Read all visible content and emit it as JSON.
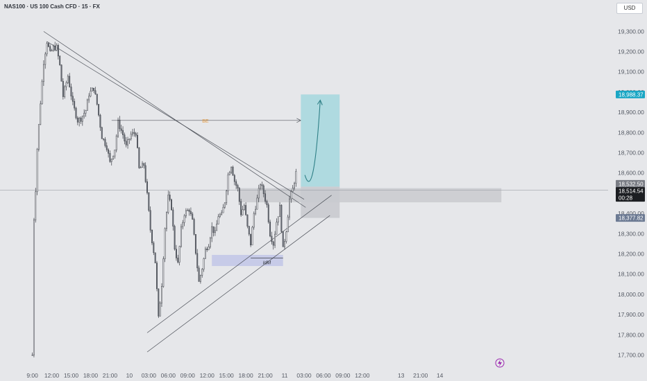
{
  "header": {
    "symbol_title": "NAS100 · US 100 Cash CFD · 15 · FX"
  },
  "currency_button": {
    "label": "USD"
  },
  "colors": {
    "background": "#e6e7ea",
    "candle_up": "#f4f4f6",
    "candle_down": "#6b7079",
    "wick": "#3a3d44",
    "target_zone": "#a9d8df",
    "zone_gray": "#c9cacf",
    "idm_zone": "#c3c8e8",
    "price_badge_blue": "#1aa6c4",
    "price_badge_slate": "#6c7a93",
    "price_badge_gray": "#7a7d85",
    "price_badge_dark": "#1c1e22",
    "arrow": "#2e7f86",
    "bos_label": "#e69a3d",
    "replay_icon": "#9c27b0"
  },
  "chart_data": {
    "type": "candlestick",
    "title": "NAS100 · US 100 Cash CFD · 15 · FX",
    "currency": "USD",
    "ylim": [
      17640,
      19380
    ],
    "yticks": [
      "19,300.00",
      "19,200.00",
      "19,100.00",
      "19,000.00",
      "18,900.00",
      "18,800.00",
      "18,700.00",
      "18,600.00",
      "18,500.00",
      "18,400.00",
      "18,300.00",
      "18,200.00",
      "18,100.00",
      "18,000.00",
      "17,900.00",
      "17,800.00",
      "17,700.00"
    ],
    "x_range": [
      -20,
      356
    ],
    "x_ticks": [
      {
        "t": 0,
        "label": "9:00"
      },
      {
        "t": 12,
        "label": "12:00"
      },
      {
        "t": 24,
        "label": "15:00"
      },
      {
        "t": 36,
        "label": "18:00"
      },
      {
        "t": 48,
        "label": "21:00"
      },
      {
        "t": 60,
        "label": "10"
      },
      {
        "t": 72,
        "label": "03:00"
      },
      {
        "t": 84,
        "label": "06:00"
      },
      {
        "t": 96,
        "label": "09:00"
      },
      {
        "t": 108,
        "label": "12:00"
      },
      {
        "t": 120,
        "label": "15:00"
      },
      {
        "t": 132,
        "label": "18:00"
      },
      {
        "t": 144,
        "label": "21:00"
      },
      {
        "t": 156,
        "label": "11"
      },
      {
        "t": 168,
        "label": "03:00"
      },
      {
        "t": 180,
        "label": "06:00"
      },
      {
        "t": 192,
        "label": "09:00"
      },
      {
        "t": 204,
        "label": "12:00"
      },
      {
        "t": 228,
        "label": "13"
      },
      {
        "t": 240,
        "label": "21:00"
      },
      {
        "t": 252,
        "label": "14"
      }
    ],
    "price_waypoints": [
      [
        0,
        17700
      ],
      [
        0.6,
        18340
      ],
      [
        1.5,
        18420
      ],
      [
        3,
        18720
      ],
      [
        5,
        18950
      ],
      [
        7,
        19150
      ],
      [
        9,
        19250
      ],
      [
        11,
        19190
      ],
      [
        13,
        19220
      ],
      [
        15,
        19220
      ],
      [
        17,
        19130
      ],
      [
        19,
        18980
      ],
      [
        22,
        19080
      ],
      [
        25,
        18940
      ],
      [
        28,
        18860
      ],
      [
        30,
        18870
      ],
      [
        33,
        18910
      ],
      [
        35,
        18990
      ],
      [
        38,
        19020
      ],
      [
        40,
        18940
      ],
      [
        43,
        18780
      ],
      [
        46,
        18730
      ],
      [
        48,
        18650
      ],
      [
        51,
        18720
      ],
      [
        53,
        18850
      ],
      [
        56,
        18790
      ],
      [
        58,
        18730
      ],
      [
        61,
        18790
      ],
      [
        64,
        18800
      ],
      [
        66,
        18620
      ],
      [
        69,
        18640
      ],
      [
        71,
        18490
      ],
      [
        73,
        18320
      ],
      [
        76,
        18160
      ],
      [
        78,
        17880
      ],
      [
        80,
        18050
      ],
      [
        82,
        18330
      ],
      [
        84,
        18480
      ],
      [
        86,
        18430
      ],
      [
        88,
        18230
      ],
      [
        90,
        18150
      ],
      [
        92,
        18320
      ],
      [
        94,
        18400
      ],
      [
        97,
        18420
      ],
      [
        99,
        18360
      ],
      [
        101,
        18210
      ],
      [
        103,
        18060
      ],
      [
        105,
        18130
      ],
      [
        107,
        18220
      ],
      [
        109,
        18250
      ],
      [
        111,
        18330
      ],
      [
        113,
        18300
      ],
      [
        115,
        18390
      ],
      [
        117,
        18390
      ],
      [
        119,
        18460
      ],
      [
        121,
        18590
      ],
      [
        123,
        18640
      ],
      [
        125,
        18560
      ],
      [
        127,
        18520
      ],
      [
        129,
        18400
      ],
      [
        131,
        18440
      ],
      [
        133,
        18330
      ],
      [
        135,
        18250
      ],
      [
        137,
        18400
      ],
      [
        139,
        18470
      ],
      [
        141,
        18550
      ],
      [
        143,
        18500
      ],
      [
        145,
        18440
      ],
      [
        147,
        18300
      ],
      [
        149,
        18250
      ],
      [
        151,
        18360
      ],
      [
        153,
        18430
      ],
      [
        155,
        18220
      ],
      [
        157,
        18320
      ],
      [
        159,
        18470
      ],
      [
        161,
        18520
      ],
      [
        163,
        18600
      ]
    ],
    "levels": {
      "target_top": 18988.37,
      "current_price": 18514.54,
      "entry": 18532.5,
      "stop": 18377.82,
      "bos": 18860,
      "idm": 18180
    },
    "price_badges": [
      {
        "value": "18,988.37",
        "color": "#1aa6c4"
      },
      {
        "value": "18,532.50",
        "color": "#7a7d85"
      },
      {
        "value": "18,514.54",
        "color": "#1c1e22"
      },
      {
        "value": "00:28",
        "color": "#1c1e22"
      },
      {
        "value": "18,377.82",
        "color": "#6c7a93"
      }
    ],
    "annotations": [
      {
        "label": "BE",
        "type": "horizontal-arrow"
      },
      {
        "label": "IdM",
        "type": "horizontal-line"
      }
    ]
  }
}
